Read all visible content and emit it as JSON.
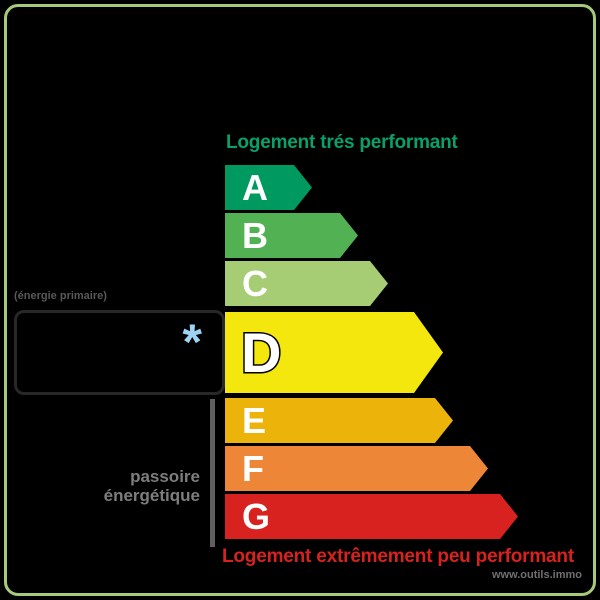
{
  "frame": {
    "border_color": "#a6c97c",
    "background_color": "#000000"
  },
  "header": {
    "title": "Logement trés performant",
    "color": "#0aa06a"
  },
  "scale": {
    "primary_energy_label": "(énergie primaire)",
    "highlighted_class": "D",
    "classes": [
      {
        "letter": "A",
        "color": "#009a61"
      },
      {
        "letter": "B",
        "color": "#52b153"
      },
      {
        "letter": "C",
        "color": "#a6cd73"
      },
      {
        "letter": "D",
        "color": "#f4e70d"
      },
      {
        "letter": "E",
        "color": "#ecb40b"
      },
      {
        "letter": "F",
        "color": "#ee8638"
      },
      {
        "letter": "G",
        "color": "#d8221f"
      }
    ]
  },
  "value_box": {
    "asterisk": "*",
    "asterisk_color": "#9fd3f4"
  },
  "passoire": {
    "line1": "passoire",
    "line2": "énergétique",
    "color": "#7d7d7d"
  },
  "footer": {
    "title": "Logement extrêmement peu performant",
    "color": "#d8221f",
    "watermark": "www.outils.immo"
  }
}
